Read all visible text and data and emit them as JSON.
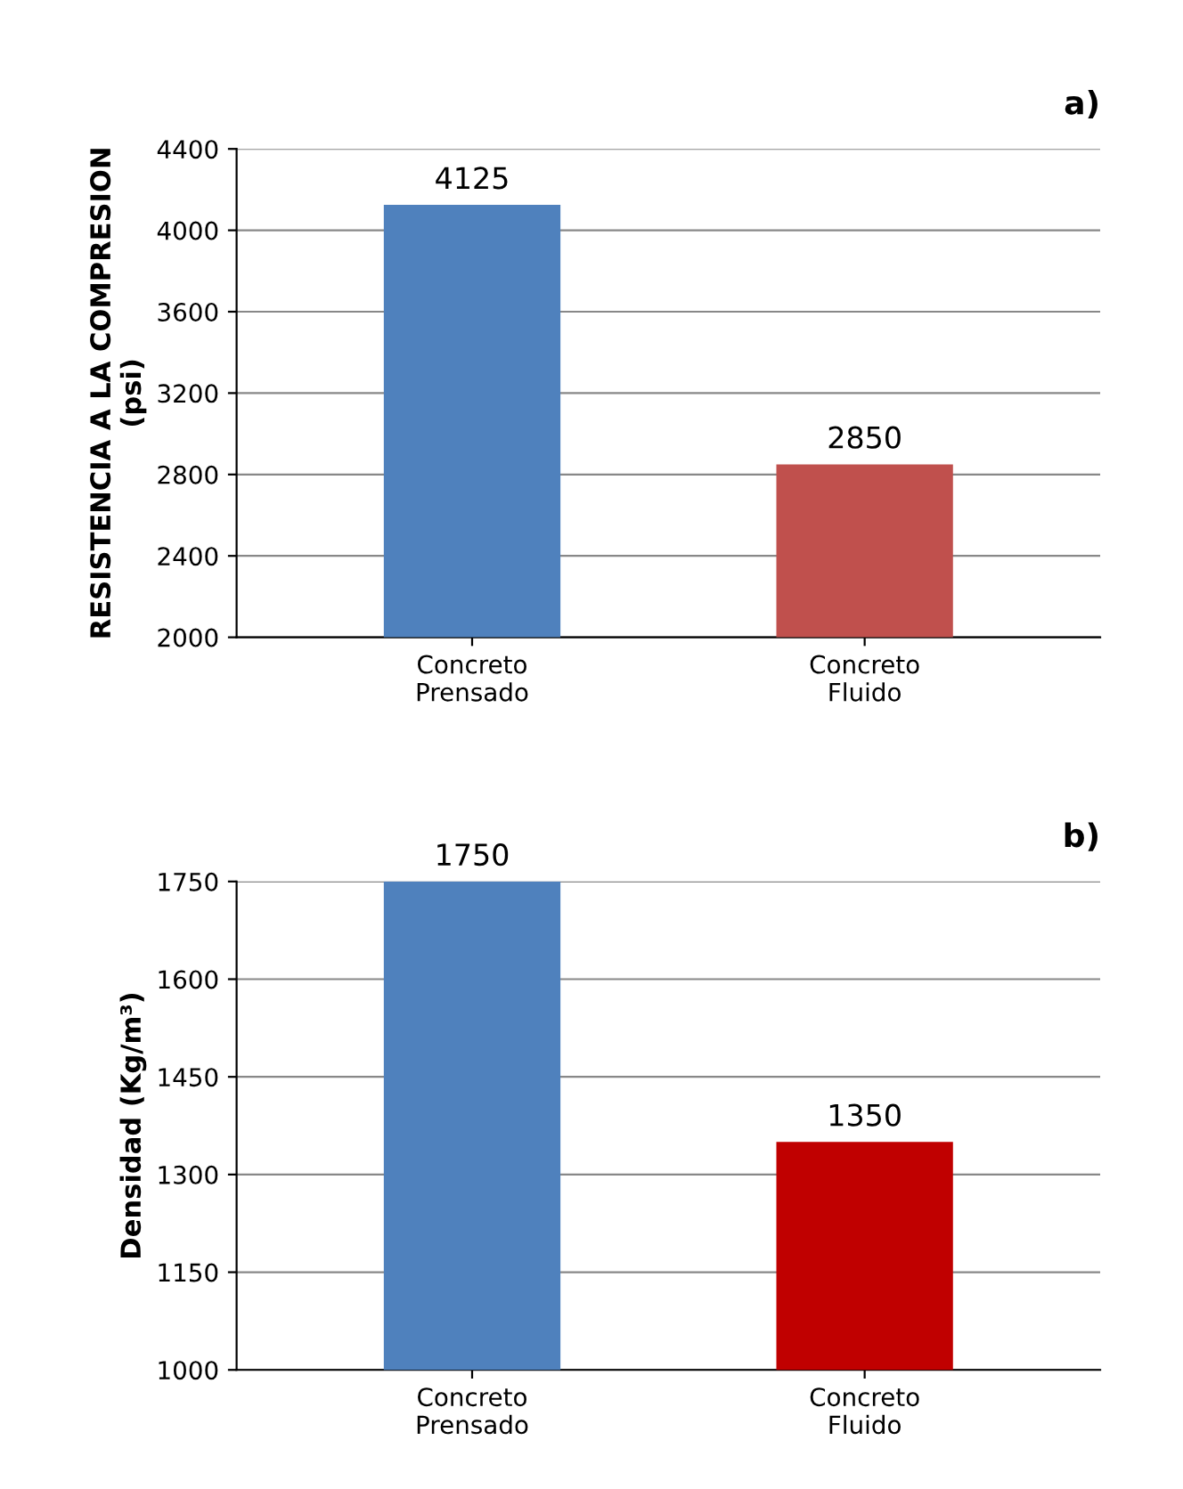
{
  "chart_data": [
    {
      "type": "bar",
      "title": "a)",
      "categories": [
        "Concreto\nPrensado",
        "Concreto\nFluido"
      ],
      "values": [
        4125,
        2850
      ],
      "colors": [
        "#4f81bd",
        "#c0504d"
      ],
      "ylabel": "RESISTENCIA A LA COMPRESION\n(psi)",
      "ylim": [
        2000,
        4400
      ],
      "yticks": [
        2000,
        2400,
        2800,
        3200,
        3600,
        4000,
        4400
      ],
      "grid": "y",
      "data_labels": true
    },
    {
      "type": "bar",
      "title": "b)",
      "categories": [
        "Concreto\nPrensado",
        "Concreto\nFluido"
      ],
      "values": [
        1750,
        1350
      ],
      "colors": [
        "#4f81bd",
        "#c00000"
      ],
      "ylabel": "Densidad (Kg/m³)",
      "ylim": [
        1000,
        1750
      ],
      "yticks": [
        1000,
        1150,
        1300,
        1450,
        1600,
        1750
      ],
      "grid": "y",
      "data_labels": true
    }
  ]
}
